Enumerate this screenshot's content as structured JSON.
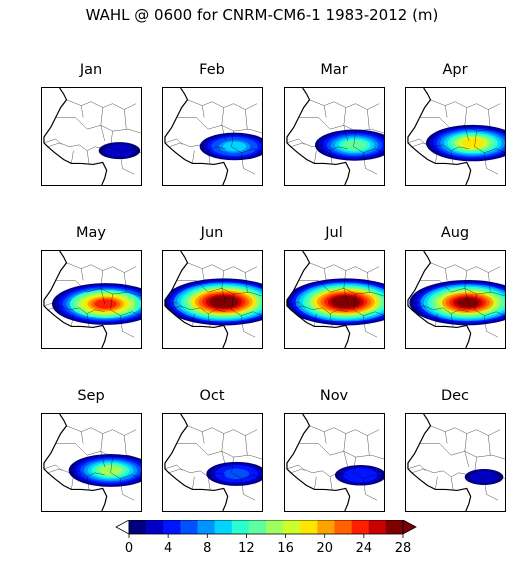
{
  "chart_data": {
    "type": "heatmap",
    "title": "WAHL @ 0600 for CNRM-CM6-1 1983-2012 (m)",
    "panels": [
      {
        "month": "Jan",
        "intensity": 0.15
      },
      {
        "month": "Feb",
        "intensity": 0.45
      },
      {
        "month": "Mar",
        "intensity": 0.55
      },
      {
        "month": "Apr",
        "intensity": 0.7
      },
      {
        "month": "May",
        "intensity": 0.85
      },
      {
        "month": "Jun",
        "intensity": 1.0
      },
      {
        "month": "Jul",
        "intensity": 1.0
      },
      {
        "month": "Aug",
        "intensity": 0.95
      },
      {
        "month": "Sep",
        "intensity": 0.6
      },
      {
        "month": "Oct",
        "intensity": 0.35
      },
      {
        "month": "Nov",
        "intensity": 0.25
      },
      {
        "month": "Dec",
        "intensity": 0.12
      }
    ],
    "colorbar": {
      "min": 0,
      "max": 28,
      "step": 2,
      "ticks": [
        "0",
        "4",
        "8",
        "12",
        "16",
        "20",
        "24",
        "28"
      ],
      "extend": "both",
      "colors": [
        "#00007f",
        "#0000c8",
        "#0014ff",
        "#0050ff",
        "#0094ff",
        "#00d4ff",
        "#29ffce",
        "#5fffa0",
        "#a0ff5f",
        "#ceff29",
        "#ffe600",
        "#ffa200",
        "#ff6000",
        "#ff1e00",
        "#c80000",
        "#7f0000"
      ]
    }
  }
}
